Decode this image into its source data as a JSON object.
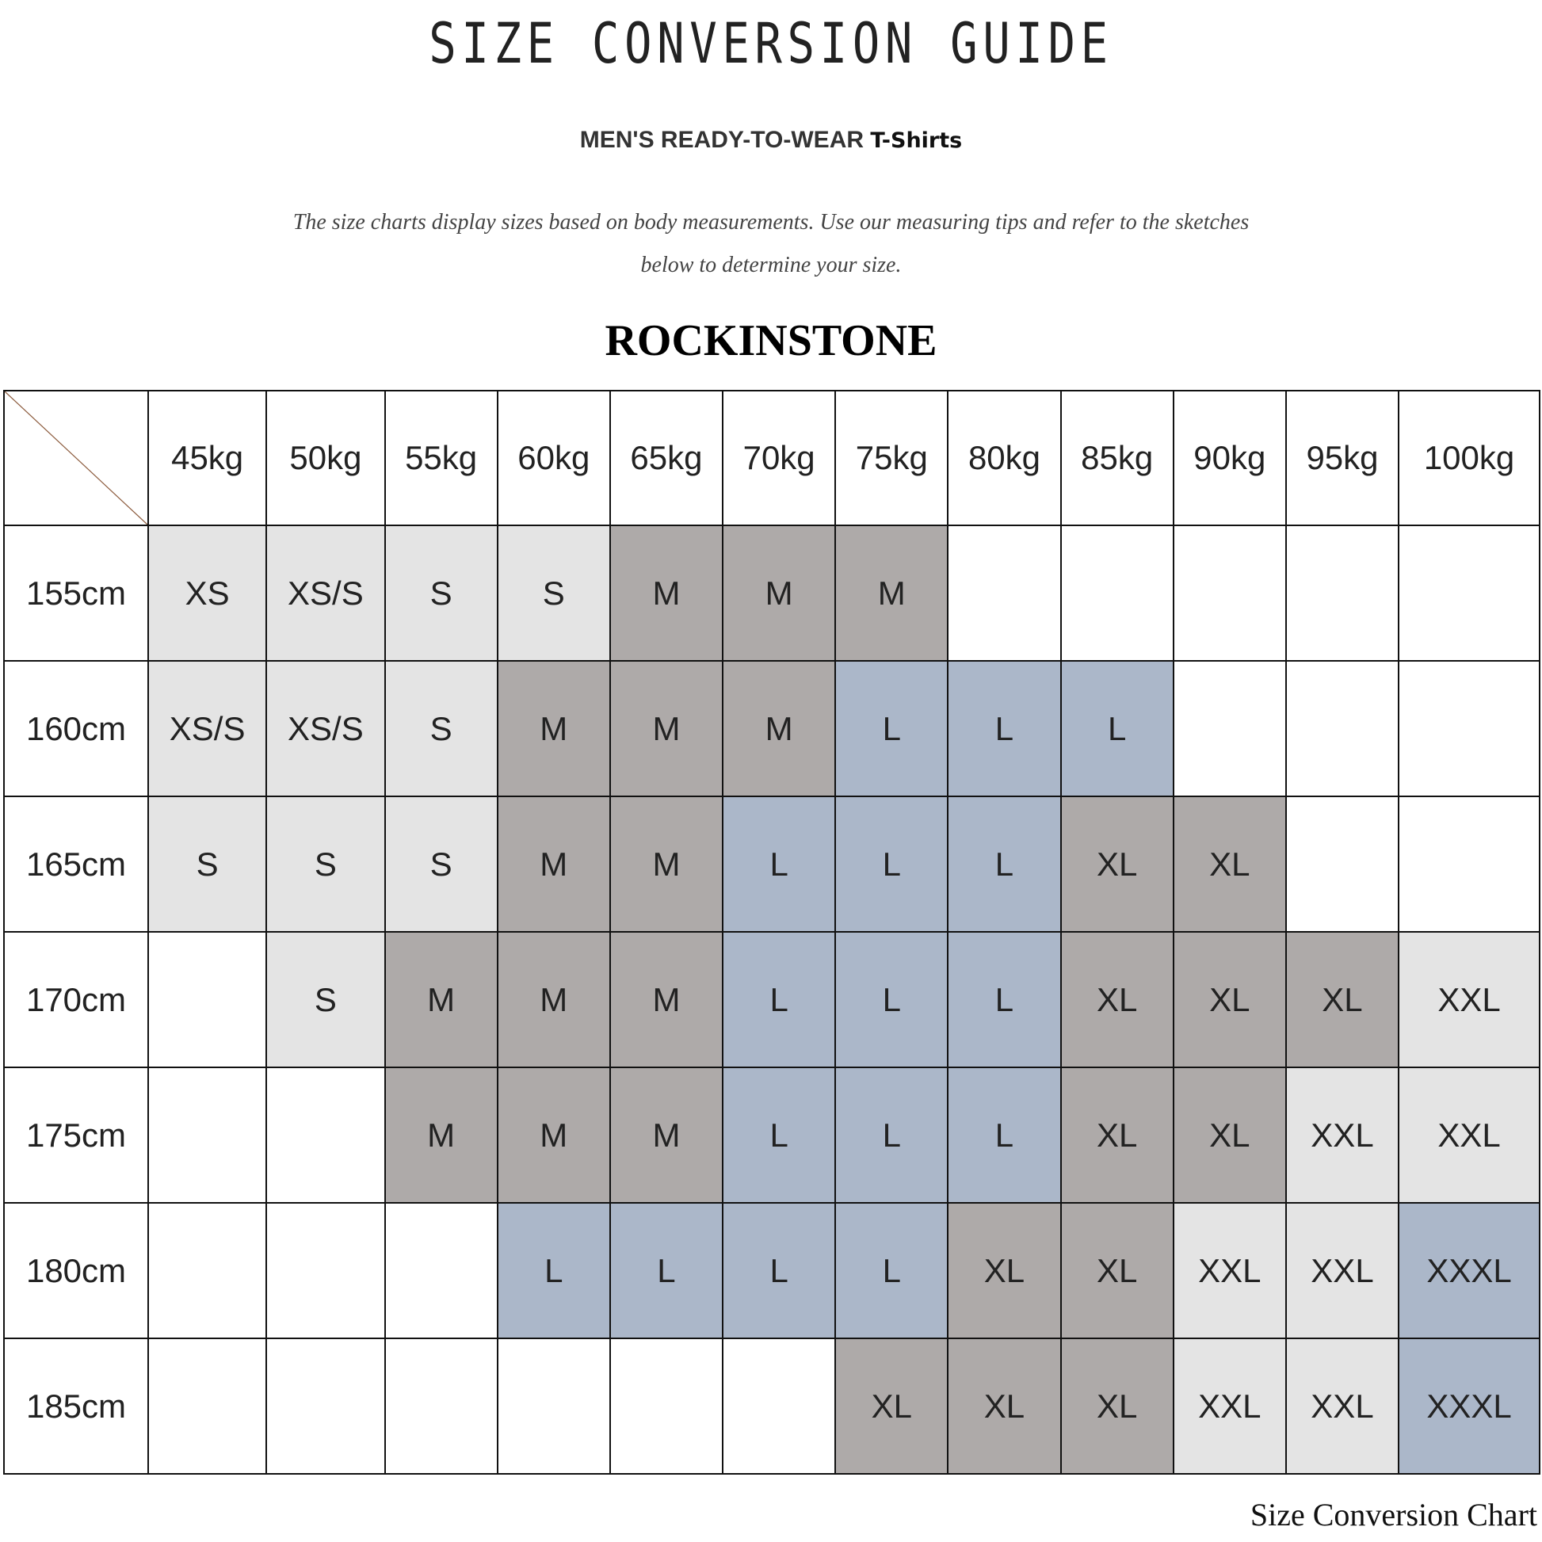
{
  "header": {
    "title": "SIZE CONVERSION GUIDE",
    "subtitle_main": "MEN'S READY-TO-WEAR ",
    "subtitle_product": "T-Shirts",
    "description_line1": "The size charts display sizes based on body measurements. Use our measuring tips and refer to the sketches",
    "description_line2": "below to determine your size.",
    "brand": "ROCKINSTONE",
    "watermark": "Rockinstone"
  },
  "colors": {
    "XS": "#e4e4e4",
    "XS/S": "#e4e4e4",
    "S": "#e4e4e4",
    "XXL": "#e4e4e4",
    "M": "#aeaaa9",
    "XL": "#aeaaa9",
    "L": "#abb7c9",
    "XXXL": "#abb7c9"
  },
  "table": {
    "weights": [
      "45kg",
      "50kg",
      "55kg",
      "60kg",
      "65kg",
      "70kg",
      "75kg",
      "80kg",
      "85kg",
      "90kg",
      "95kg",
      "100kg"
    ],
    "rows": [
      {
        "height": "155cm",
        "sizes": [
          "XS",
          "XS/S",
          "S",
          "S",
          "M",
          "M",
          "M",
          "",
          "",
          "",
          "",
          ""
        ]
      },
      {
        "height": "160cm",
        "sizes": [
          "XS/S",
          "XS/S",
          "S",
          "M",
          "M",
          "M",
          "L",
          "L",
          "L",
          "",
          "",
          ""
        ]
      },
      {
        "height": "165cm",
        "sizes": [
          "S",
          "S",
          "S",
          "M",
          "M",
          "L",
          "L",
          "L",
          "XL",
          "XL",
          "",
          ""
        ]
      },
      {
        "height": "170cm",
        "sizes": [
          "",
          "S",
          "M",
          "M",
          "M",
          "L",
          "L",
          "L",
          "XL",
          "XL",
          "XL",
          "XXL"
        ]
      },
      {
        "height": "175cm",
        "sizes": [
          "",
          "",
          "M",
          "M",
          "M",
          "L",
          "L",
          "L",
          "XL",
          "XL",
          "XXL",
          "XXL"
        ]
      },
      {
        "height": "180cm",
        "sizes": [
          "",
          "",
          "",
          "L",
          "L",
          "L",
          "L",
          "XL",
          "XL",
          "XXL",
          "XXL",
          "XXXL"
        ]
      },
      {
        "height": "185cm",
        "sizes": [
          "",
          "",
          "",
          "",
          "",
          "",
          "XL",
          "XL",
          "XL",
          "XXL",
          "XXL",
          "XXXL"
        ]
      }
    ]
  },
  "footer": "Size Conversion Chart"
}
